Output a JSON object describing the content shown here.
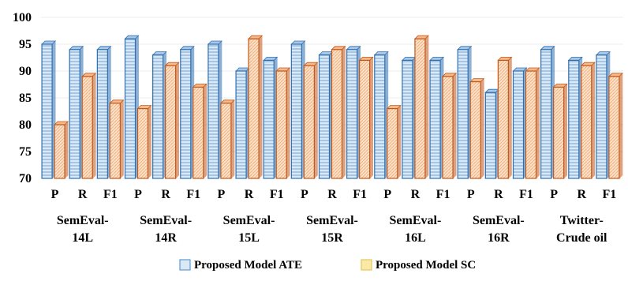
{
  "chart_data": {
    "type": "bar",
    "ylim": [
      70,
      100
    ],
    "yticks": [
      70,
      75,
      80,
      85,
      90,
      95,
      100
    ],
    "grid": false,
    "legend_position": "bottom",
    "groups": [
      {
        "label_lines": [
          "SemEval-",
          "14L"
        ],
        "metrics": [
          "P",
          "R",
          "F1"
        ]
      },
      {
        "label_lines": [
          "SemEval-",
          "14R"
        ],
        "metrics": [
          "P",
          "R",
          "F1"
        ]
      },
      {
        "label_lines": [
          "SemEval-",
          "15L"
        ],
        "metrics": [
          "P",
          "R",
          "F1"
        ]
      },
      {
        "label_lines": [
          "SemEval-",
          "15R"
        ],
        "metrics": [
          "P",
          "R",
          "F1"
        ]
      },
      {
        "label_lines": [
          "SemEval-",
          "16L"
        ],
        "metrics": [
          "P",
          "R",
          "F1"
        ]
      },
      {
        "label_lines": [
          "SemEval-",
          "16R"
        ],
        "metrics": [
          "P",
          "R",
          "F1"
        ]
      },
      {
        "label_lines": [
          "Twitter-",
          "Crude oil"
        ],
        "metrics": [
          "P",
          "R",
          "F1"
        ]
      }
    ],
    "series": [
      {
        "name": "Proposed Model ATE",
        "color": "#5b9bd5",
        "values": [
          95,
          94,
          94,
          96,
          93,
          94,
          95,
          90,
          92,
          95,
          93,
          94,
          93,
          92,
          92,
          94,
          86,
          90,
          94,
          92,
          93
        ]
      },
      {
        "name": "Proposed Model SC",
        "color": "#ed7d31",
        "values": [
          80,
          89,
          84,
          83,
          91,
          87,
          84,
          96,
          90,
          91,
          94,
          92,
          83,
          96,
          89,
          88,
          92,
          90,
          87,
          91,
          89
        ]
      }
    ]
  }
}
